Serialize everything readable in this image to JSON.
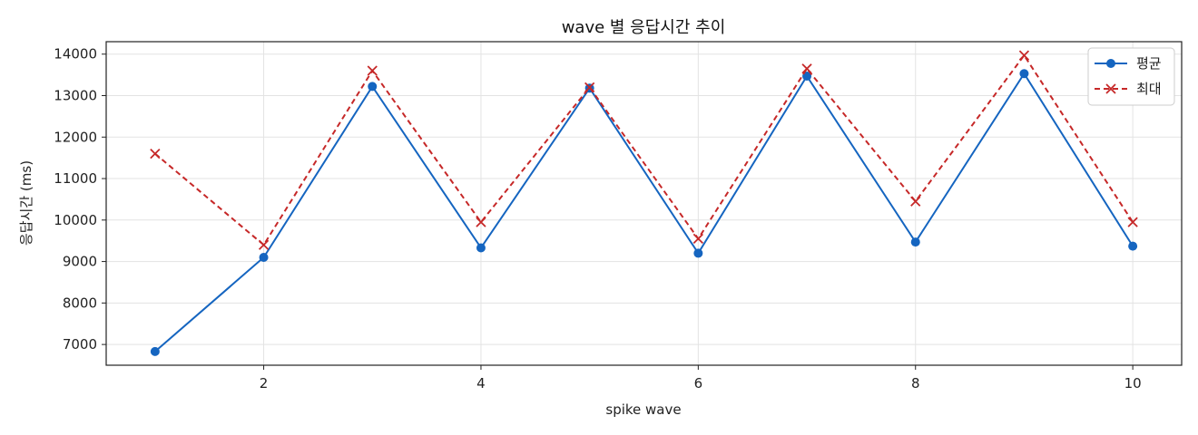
{
  "chart_data": {
    "type": "line",
    "title": "wave 별 응답시간 추이",
    "xlabel": "spike wave",
    "ylabel": "응답시간 (ms)",
    "x": [
      1,
      2,
      3,
      4,
      5,
      6,
      7,
      8,
      9,
      10
    ],
    "xlim": [
      0.55,
      10.45
    ],
    "ylim": [
      6500,
      14300
    ],
    "xticks": [
      2,
      4,
      6,
      8,
      10
    ],
    "yticks": [
      7000,
      8000,
      9000,
      10000,
      11000,
      12000,
      13000,
      14000
    ],
    "grid": true,
    "legend_position": "top-right",
    "series": [
      {
        "name": "평균",
        "color": "#1565c0",
        "line_style": "solid",
        "marker": "circle",
        "values": [
          6830,
          9100,
          13220,
          9330,
          13180,
          9200,
          13470,
          9470,
          13530,
          9370
        ]
      },
      {
        "name": "최대",
        "color": "#c62828",
        "line_style": "dashed",
        "marker": "x",
        "values": [
          11600,
          9400,
          13600,
          9950,
          13200,
          9550,
          13650,
          10450,
          13970,
          9950
        ]
      }
    ]
  }
}
